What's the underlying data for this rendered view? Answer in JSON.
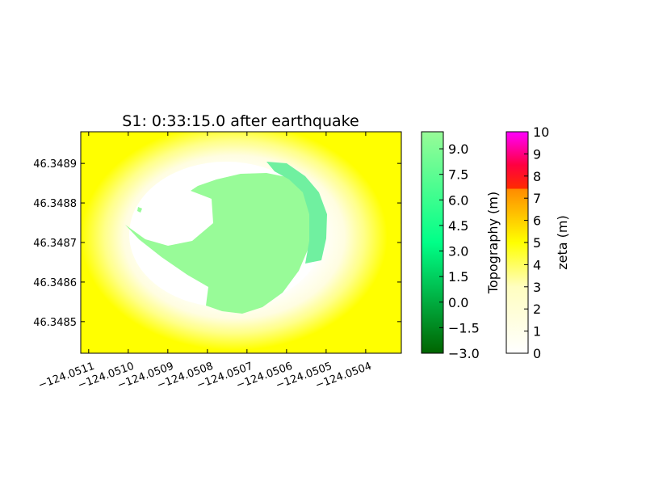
{
  "chart_data": {
    "type": "heatmap",
    "title": "S1: 0:33:15.0 after earthquake",
    "xlabel": "",
    "ylabel": "",
    "x_ticks": [
      "−124.0511",
      "−124.0510",
      "−124.0509",
      "−124.0508",
      "−124.0507",
      "−124.0506",
      "−124.0505",
      "−124.0504"
    ],
    "x_tick_values": [
      -124.0511,
      -124.051,
      -124.0509,
      -124.0508,
      -124.0507,
      -124.0506,
      -124.0505,
      -124.0504
    ],
    "y_ticks": [
      "46.3489",
      "46.3488",
      "46.3487",
      "46.3486",
      "46.3485"
    ],
    "y_tick_values": [
      46.3489,
      46.3488,
      46.3487,
      46.3486,
      46.3485
    ],
    "xlim": [
      -124.05112,
      -124.05031
    ],
    "ylim": [
      46.34842,
      46.34898
    ],
    "layers": [
      {
        "variable": "zeta",
        "colorbar_label": "zeta (m)",
        "range": [
          0,
          10
        ],
        "ticks": [
          "0",
          "1",
          "2",
          "3",
          "4",
          "5",
          "6",
          "7",
          "8",
          "9",
          "10"
        ],
        "colormap": [
          {
            "value": 0,
            "color": "#ffffff"
          },
          {
            "value": 3,
            "color": "#fffec0"
          },
          {
            "value": 5,
            "color": "#ffff00"
          },
          {
            "value": 7.4,
            "color": "#ff8c00"
          },
          {
            "value": 7.5,
            "color": "#ff2a00"
          },
          {
            "value": 8.5,
            "color": "#ff0040"
          },
          {
            "value": 10,
            "color": "#ff00ff"
          }
        ]
      },
      {
        "variable": "Topography",
        "colorbar_label": "Topography (m)",
        "range": [
          -3,
          10
        ],
        "ticks": [
          "−3.0",
          "−1.5",
          "0.0",
          "1.5",
          "3.0",
          "4.5",
          "6.0",
          "7.5",
          "9.0"
        ],
        "tick_values": [
          -3,
          -1.5,
          0,
          1.5,
          3,
          4.5,
          6,
          7.5,
          9
        ],
        "colormap": [
          {
            "value": -3,
            "color": "#006400"
          },
          {
            "value": 3.5,
            "color": "#00ff88"
          },
          {
            "value": 10,
            "color": "#98fb98"
          }
        ]
      }
    ],
    "grid": false,
    "legend": "colorbars-right"
  }
}
